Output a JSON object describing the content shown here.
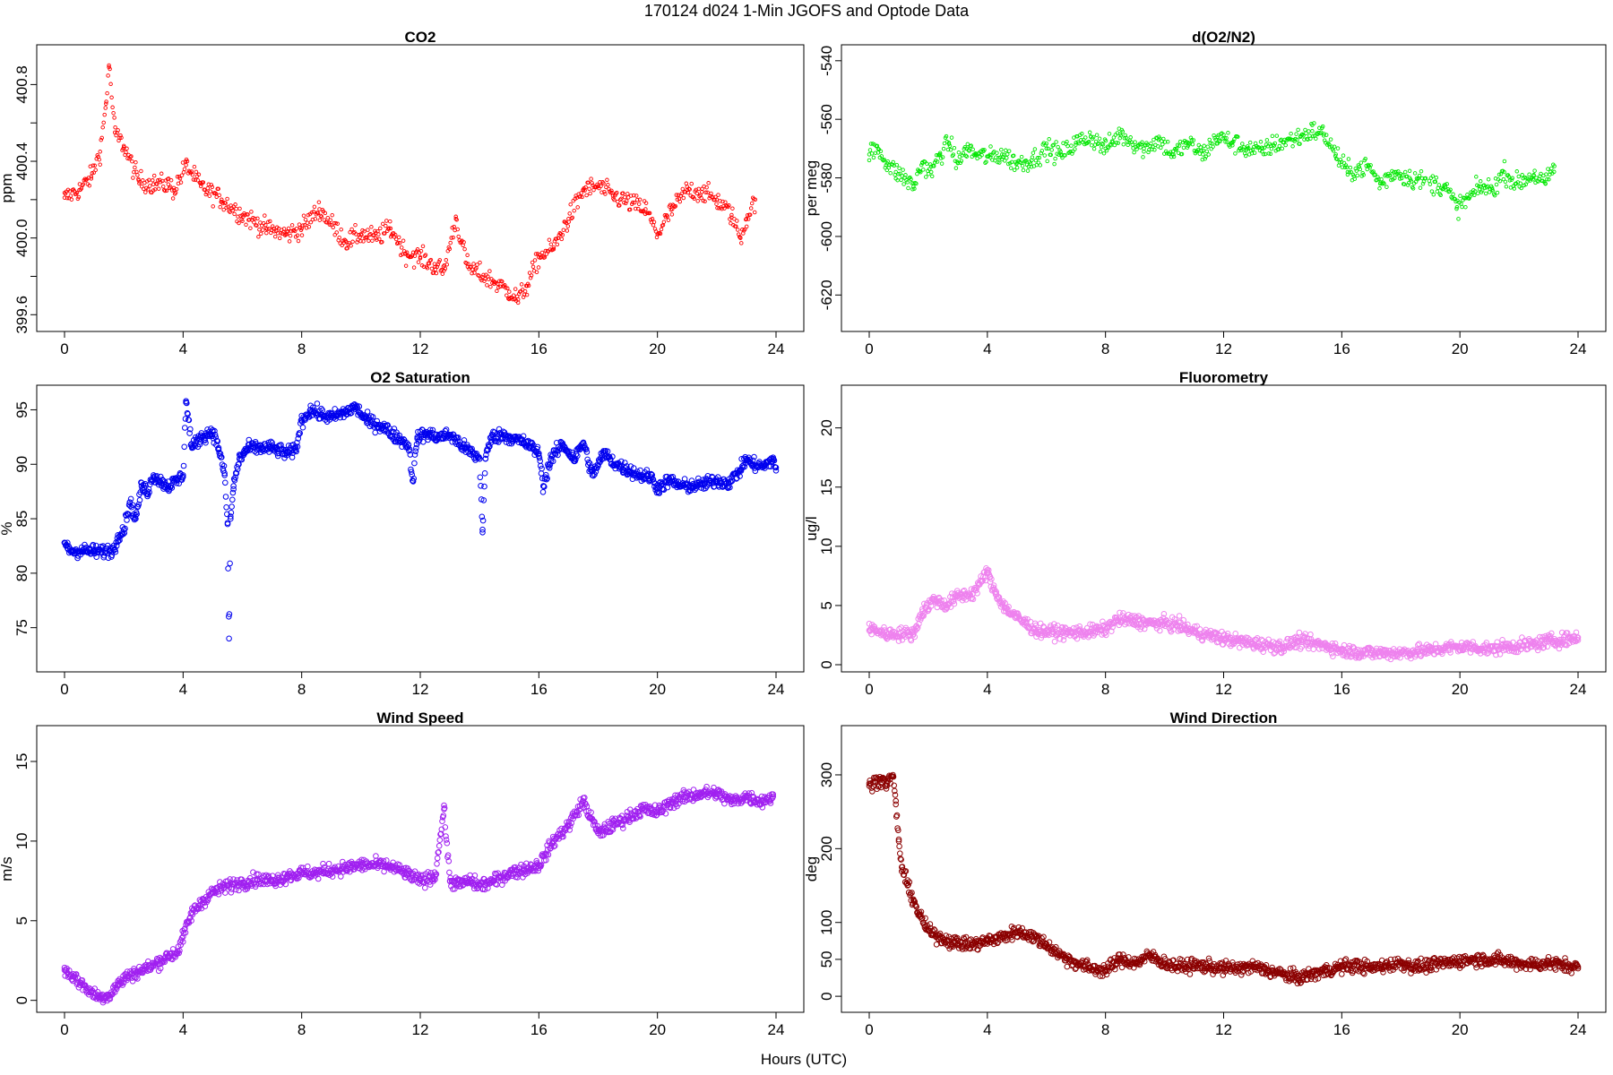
{
  "figure": {
    "title": "170124   d024   1-Min  JGOFS and Optode Data",
    "xlabel": "Hours (UTC)"
  },
  "chart_data": [
    {
      "id": "co2",
      "type": "scatter",
      "title": "CO2",
      "ylabel": "ppm",
      "color": "#ff0000",
      "marker_size": "small",
      "xlim": [
        0,
        24
      ],
      "ylim": [
        399.55,
        400.97
      ],
      "xticks": [
        0,
        4,
        8,
        12,
        16,
        20,
        24
      ],
      "xtick_labels": [
        "0",
        "4",
        "8",
        "12",
        "16",
        "20",
        "24"
      ],
      "yticks": [
        399.6,
        400.0,
        400.4,
        400.8
      ],
      "ytick_labels": [
        "399.6",
        "400.0",
        "400.4",
        "400.8"
      ],
      "yminor": [
        399.8,
        400.2,
        400.6
      ],
      "x": [
        0.0,
        0.5,
        0.9,
        1.2,
        1.4,
        1.5,
        1.7,
        2.0,
        2.5,
        3.0,
        3.5,
        3.7,
        4.1,
        4.6,
        5.3,
        6.0,
        6.8,
        7.5,
        8.0,
        8.6,
        9.5,
        10.0,
        10.5,
        11.0,
        11.5,
        12.0,
        12.5,
        12.8,
        13.2,
        13.6,
        14.5,
        15.0,
        15.3,
        15.6,
        16.0,
        16.5,
        17.0,
        17.5,
        18.0,
        18.5,
        19.6,
        20.0,
        20.5,
        21.0,
        21.5,
        22.0,
        22.5,
        22.8,
        23.0,
        23.3
      ],
      "y": [
        400.21,
        400.25,
        400.32,
        400.45,
        400.7,
        400.9,
        400.55,
        400.48,
        400.3,
        400.28,
        400.28,
        400.25,
        400.38,
        400.27,
        400.2,
        400.12,
        400.05,
        400.02,
        400.05,
        400.15,
        399.98,
        400.02,
        400.0,
        400.05,
        399.92,
        399.9,
        399.85,
        399.83,
        400.1,
        399.85,
        399.77,
        399.72,
        399.68,
        399.75,
        399.9,
        399.95,
        400.1,
        400.25,
        400.27,
        400.22,
        400.15,
        400.02,
        400.15,
        400.25,
        400.24,
        400.2,
        400.12,
        400.0,
        400.1,
        400.2
      ]
    },
    {
      "id": "do2n2",
      "type": "scatter",
      "title": "d(O2/N2)",
      "ylabel": "per meg",
      "color": "#00e600",
      "marker_size": "small",
      "xlim": [
        0,
        24
      ],
      "ylim": [
        -630,
        -537
      ],
      "xticks": [
        0,
        4,
        8,
        12,
        16,
        20,
        24
      ],
      "xtick_labels": [
        "0",
        "4",
        "8",
        "12",
        "16",
        "20",
        "24"
      ],
      "yticks": [
        -620,
        -600,
        -580,
        -560,
        -540
      ],
      "ytick_labels": [
        "-620",
        "-600",
        "-580",
        "-560",
        "-540"
      ],
      "x": [
        0.0,
        0.3,
        0.6,
        0.9,
        1.2,
        1.5,
        1.8,
        2.1,
        2.4,
        2.7,
        3.0,
        3.3,
        3.6,
        4.1,
        4.5,
        5.0,
        5.5,
        6.0,
        6.5,
        7.0,
        7.5,
        8.0,
        8.5,
        9.3,
        9.8,
        10.3,
        10.8,
        11.3,
        11.8,
        12.3,
        12.8,
        13.3,
        13.6,
        14.6,
        15.0,
        15.4,
        15.8,
        16.2,
        16.9,
        17.3,
        17.8,
        18.3,
        19.5,
        19.9,
        20.3,
        20.7,
        21.1,
        21.5,
        21.9,
        22.5,
        22.9,
        23.2
      ],
      "y": [
        -572,
        -570,
        -575,
        -578,
        -580,
        -583,
        -575,
        -578,
        -572,
        -568,
        -575,
        -570,
        -572,
        -573,
        -572,
        -575,
        -574,
        -570,
        -572,
        -568,
        -566,
        -570,
        -565,
        -570,
        -567,
        -572,
        -568,
        -572,
        -566,
        -568,
        -570,
        -571,
        -569,
        -566,
        -564,
        -565,
        -572,
        -578,
        -576,
        -582,
        -578,
        -580,
        -583,
        -590,
        -587,
        -583,
        -584,
        -578,
        -582,
        -579,
        -582,
        -576
      ]
    },
    {
      "id": "o2sat",
      "type": "scatter",
      "title": "O2 Saturation",
      "ylabel": "%",
      "color": "#0000ee",
      "marker_size": "large",
      "xlim": [
        0,
        24
      ],
      "ylim": [
        71.6,
        96.6
      ],
      "xticks": [
        0,
        4,
        8,
        12,
        16,
        20,
        24
      ],
      "xtick_labels": [
        "0",
        "4",
        "8",
        "12",
        "16",
        "20",
        "24"
      ],
      "yticks": [
        75,
        80,
        85,
        90,
        95
      ],
      "ytick_labels": [
        "75",
        "80",
        "85",
        "90",
        "95"
      ],
      "x": [
        0.0,
        0.1,
        0.3,
        0.6,
        1.0,
        1.4,
        1.7,
        1.8,
        2.0,
        2.2,
        2.4,
        2.6,
        2.8,
        3.0,
        3.2,
        3.5,
        3.8,
        4.0,
        4.1,
        4.3,
        4.6,
        5.0,
        5.2,
        5.4,
        5.5,
        5.55,
        5.6,
        5.7,
        5.9,
        6.2,
        6.6,
        7.0,
        7.5,
        7.8,
        8.0,
        8.3,
        8.7,
        9.0,
        9.5,
        9.8,
        10.2,
        10.7,
        11.2,
        11.6,
        11.75,
        11.9,
        12.2,
        12.6,
        13.0,
        13.5,
        14.0,
        14.1,
        14.2,
        14.4,
        14.8,
        15.2,
        15.5,
        15.8,
        16.0,
        16.15,
        16.4,
        16.8,
        17.2,
        17.5,
        17.8,
        18.2,
        18.6,
        19.0,
        19.4,
        19.8,
        20.0,
        20.4,
        20.8,
        21.2,
        21.6,
        22.0,
        22.4,
        22.8,
        23.0,
        23.2,
        23.6,
        23.9,
        24.0
      ],
      "y": [
        82.8,
        82.3,
        82.0,
        82.1,
        82.0,
        82.0,
        82.2,
        83.5,
        84.0,
        86.5,
        85.0,
        88.0,
        87.5,
        89.0,
        88.5,
        88.0,
        88.5,
        89.0,
        95.8,
        91.5,
        92.5,
        93.0,
        91.5,
        89.0,
        84.5,
        74.0,
        85.0,
        88.0,
        90.5,
        91.5,
        91.5,
        91.5,
        91.0,
        91.3,
        94.0,
        95.0,
        94.5,
        94.3,
        94.8,
        95.3,
        94.0,
        93.5,
        92.5,
        91.8,
        88.5,
        92.5,
        92.8,
        92.5,
        92.7,
        91.5,
        90.5,
        84.0,
        90.5,
        92.5,
        92.7,
        92.3,
        92.0,
        91.5,
        91.0,
        88.0,
        90.5,
        91.8,
        90.5,
        92.0,
        89.0,
        91.0,
        90.0,
        89.5,
        89.0,
        88.8,
        87.8,
        88.5,
        88.0,
        88.0,
        88.2,
        88.5,
        88.3,
        89.5,
        90.5,
        90.0,
        89.8,
        90.5,
        89.7
      ]
    },
    {
      "id": "fluor",
      "type": "scatter",
      "title": "Fluorometry",
      "ylabel": "ug/l",
      "color": "#ee82ee",
      "marker_size": "large",
      "xlim": [
        0,
        24
      ],
      "ylim": [
        0,
        23
      ],
      "xticks": [
        0,
        4,
        8,
        12,
        16,
        20,
        24
      ],
      "xtick_labels": [
        "0",
        "4",
        "8",
        "12",
        "16",
        "20",
        "24"
      ],
      "yticks": [
        0,
        5,
        10,
        15,
        20
      ],
      "ytick_labels": [
        "0",
        "5",
        "10",
        "15",
        "20"
      ],
      "x": [
        0.0,
        0.2,
        0.5,
        1.0,
        1.5,
        1.8,
        2.2,
        2.6,
        3.0,
        3.5,
        3.8,
        4.0,
        4.1,
        4.3,
        4.6,
        5.0,
        5.3,
        5.6,
        5.8,
        6.2,
        6.8,
        7.5,
        8.0,
        8.4,
        9.0,
        9.5,
        10.0,
        10.5,
        11.0,
        11.5,
        12.0,
        12.5,
        13.0,
        14.0,
        14.5,
        15.0,
        15.5,
        16.0,
        16.5,
        17.0,
        17.5,
        18.0,
        18.5,
        19.0,
        19.5,
        20.0,
        20.5,
        21.0,
        21.5,
        22.0,
        22.5,
        23.0,
        23.5,
        24.0
      ],
      "y": [
        2.9,
        3.0,
        2.6,
        2.6,
        2.6,
        4.5,
        5.5,
        5.0,
        5.8,
        6.0,
        7.0,
        8.0,
        7.0,
        6.0,
        4.8,
        4.0,
        3.5,
        3.0,
        2.8,
        2.8,
        2.7,
        2.8,
        3.0,
        3.8,
        3.7,
        3.5,
        3.5,
        3.3,
        2.8,
        2.5,
        2.2,
        2.0,
        1.8,
        1.5,
        2.0,
        1.8,
        1.6,
        1.2,
        1.1,
        1.0,
        1.0,
        1.0,
        1.1,
        1.2,
        1.4,
        1.5,
        1.5,
        1.3,
        1.5,
        1.6,
        1.7,
        2.0,
        2.1,
        2.3
      ]
    },
    {
      "id": "windspeed",
      "type": "scatter",
      "title": "Wind Speed",
      "ylabel": "m/s",
      "color": "#a020f0",
      "marker_size": "large",
      "xlim": [
        0,
        24
      ],
      "ylim": [
        -0.3,
        16.8
      ],
      "xticks": [
        0,
        4,
        8,
        12,
        16,
        20,
        24
      ],
      "xtick_labels": [
        "0",
        "4",
        "8",
        "12",
        "16",
        "20",
        "24"
      ],
      "yticks": [
        0,
        5,
        10,
        15
      ],
      "ytick_labels": [
        "0",
        "5",
        "10",
        "15"
      ],
      "x": [
        0.0,
        0.3,
        0.6,
        0.9,
        1.2,
        1.5,
        1.8,
        2.1,
        2.5,
        3.0,
        3.5,
        3.8,
        4.0,
        4.3,
        4.7,
        5.0,
        5.5,
        6.0,
        6.5,
        7.0,
        7.5,
        8.0,
        8.5,
        9.0,
        9.5,
        10.0,
        10.5,
        11.0,
        11.5,
        12.0,
        12.5,
        12.8,
        13.0,
        13.3,
        13.7,
        14.0,
        14.5,
        15.0,
        15.5,
        16.0,
        16.5,
        17.0,
        17.5,
        18.0,
        18.5,
        19.0,
        19.5,
        20.0,
        20.5,
        21.0,
        21.5,
        22.0,
        22.5,
        23.0,
        23.5,
        23.9
      ],
      "y": [
        1.9,
        1.5,
        1.0,
        0.5,
        0.2,
        0.3,
        1.0,
        1.5,
        1.8,
        2.2,
        2.8,
        3.0,
        4.0,
        5.5,
        6.3,
        6.8,
        7.2,
        7.4,
        7.6,
        7.5,
        7.8,
        8.0,
        8.0,
        8.2,
        8.3,
        8.5,
        8.5,
        8.4,
        8.0,
        7.5,
        7.8,
        12.0,
        7.5,
        7.3,
        7.5,
        7.2,
        7.5,
        8.0,
        8.2,
        8.5,
        10.0,
        11.0,
        12.5,
        10.5,
        11.0,
        11.5,
        12.0,
        11.8,
        12.5,
        12.8,
        13.0,
        13.0,
        12.5,
        12.8,
        12.5,
        12.8
      ]
    },
    {
      "id": "winddir",
      "type": "scatter",
      "title": "Wind Direction",
      "ylabel": "deg",
      "color": "#8b0000",
      "marker_size": "large",
      "xlim": [
        0,
        24
      ],
      "ylim": [
        -12,
        357
      ],
      "xticks": [
        0,
        4,
        8,
        12,
        16,
        20,
        24
      ],
      "xtick_labels": [
        "0",
        "4",
        "8",
        "12",
        "16",
        "20",
        "24"
      ],
      "yticks": [
        0,
        50,
        100,
        200,
        300
      ],
      "ytick_labels": [
        "0",
        "50",
        "100",
        "200",
        "300"
      ],
      "x": [
        0.0,
        0.2,
        0.4,
        0.6,
        0.8,
        0.9,
        1.0,
        1.1,
        1.3,
        1.5,
        1.7,
        1.9,
        2.1,
        2.4,
        2.7,
        3.0,
        3.5,
        4.0,
        4.5,
        5.0,
        5.5,
        6.0,
        6.5,
        7.0,
        7.5,
        8.0,
        8.5,
        9.0,
        9.5,
        10.0,
        10.5,
        11.0,
        11.5,
        12.0,
        12.5,
        13.0,
        13.5,
        14.0,
        14.5,
        15.0,
        15.5,
        16.0,
        16.5,
        17.0,
        17.5,
        18.0,
        18.5,
        19.0,
        19.5,
        20.0,
        20.5,
        21.0,
        21.5,
        22.0,
        22.5,
        23.0,
        23.5,
        24.0
      ],
      "y": [
        285,
        290,
        295,
        288,
        300,
        260,
        210,
        175,
        150,
        130,
        110,
        95,
        85,
        80,
        75,
        72,
        70,
        75,
        80,
        88,
        82,
        70,
        55,
        45,
        38,
        35,
        50,
        45,
        55,
        45,
        40,
        42,
        40,
        38,
        38,
        40,
        35,
        30,
        25,
        30,
        35,
        40,
        42,
        38,
        42,
        45,
        40,
        42,
        45,
        48,
        50,
        50,
        48,
        45,
        43,
        45,
        42,
        40
      ]
    }
  ]
}
